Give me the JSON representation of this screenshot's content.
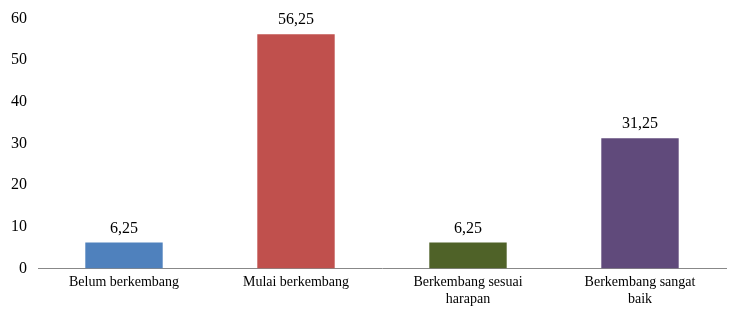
{
  "chart_data": {
    "type": "bar",
    "categories": [
      "Belum berkembang",
      "Mulai berkembang",
      "Berkembang sesuai harapan",
      "Berkembang sangat baik"
    ],
    "values": [
      6.25,
      56.25,
      6.25,
      31.25
    ],
    "value_labels": [
      "6,25",
      "56,25",
      "6,25",
      "31,25"
    ],
    "colors": [
      "#4f81bd",
      "#c0504d",
      "#4f6228",
      "#604a7b"
    ],
    "ylim": [
      0,
      60
    ],
    "yticks": [
      0,
      10,
      20,
      30,
      40,
      50,
      60
    ],
    "grid": false,
    "data_labels": true
  }
}
